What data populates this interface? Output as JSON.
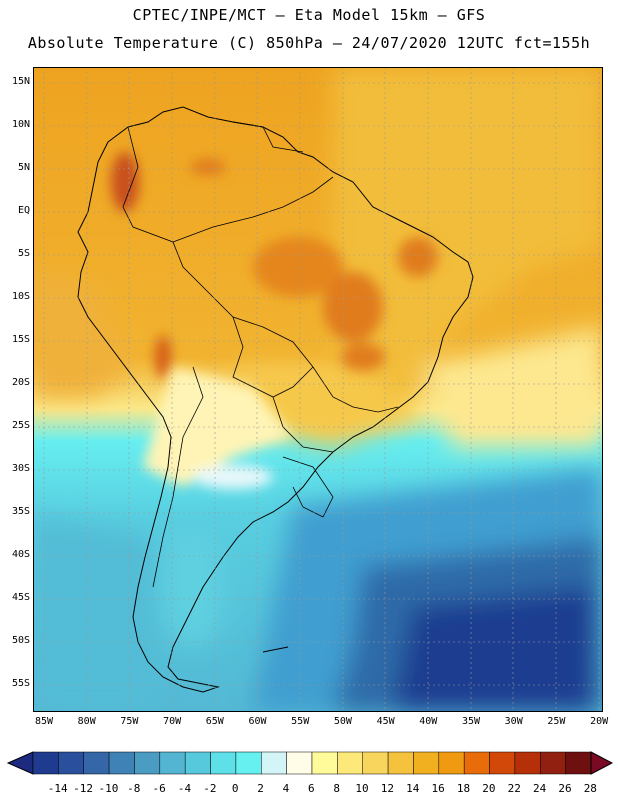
{
  "title_line1": "CPTEC/INPE/MCT –  Eta Model 15km – GFS",
  "title_line2": "Absolute Temperature (C) 850hPa – 24/07/2020 12UTC fct=155h",
  "lat_labels": [
    "15N",
    "10N",
    "5N",
    "EQ",
    "5S",
    "10S",
    "15S",
    "20S",
    "25S",
    "30S",
    "35S",
    "40S",
    "45S",
    "50S",
    "55S"
  ],
  "lon_labels": [
    "85W",
    "80W",
    "75W",
    "70W",
    "65W",
    "60W",
    "55W",
    "50W",
    "45W",
    "40W",
    "35W",
    "30W",
    "25W",
    "20W"
  ],
  "colorbar": {
    "values": [
      "-14",
      "-12",
      "-10",
      "-8",
      "-6",
      "-4",
      "-2",
      "0",
      "2",
      "4",
      "6",
      "8",
      "10",
      "12",
      "14",
      "16",
      "18",
      "20",
      "22",
      "24",
      "26",
      "28"
    ],
    "colors": [
      "#1f3b8f",
      "#2a4f9c",
      "#3466a8",
      "#3f82b5",
      "#4a9cc3",
      "#53b5d1",
      "#57c9dc",
      "#5ee0e8",
      "#66f0f0",
      "#d4f5f8",
      "#fffde8",
      "#fffa9a",
      "#fde97a",
      "#f8d55d",
      "#f4c23c",
      "#f0b020",
      "#ef9a10",
      "#e86c0a",
      "#d24808",
      "#b53008",
      "#912010",
      "#6e1010"
    ],
    "below_color": "#1c2a80",
    "above_color": "#7a0a24"
  }
}
